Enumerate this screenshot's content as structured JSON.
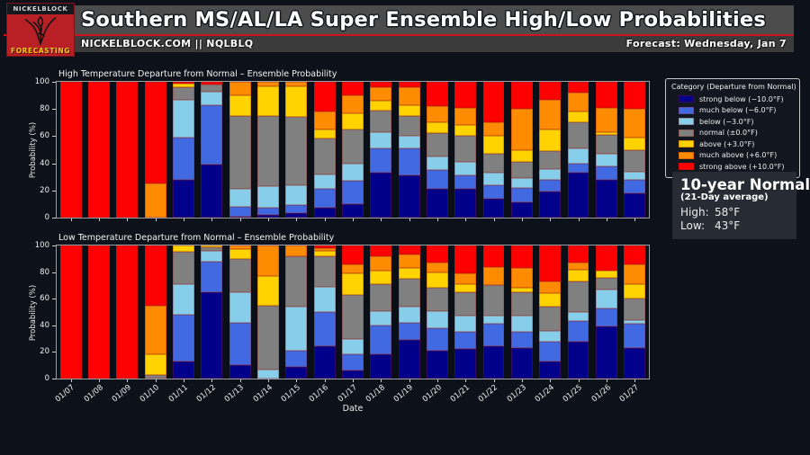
{
  "header": {
    "logo_top": "NICKELBLOCK",
    "logo_bottom": "FORECASTING",
    "title": "Southern MS/AL/LA Super Ensemble High/Low Probabilities",
    "subtitle_left": "NICKELBLOCK.COM || NQLBLQ",
    "subtitle_right": "Forecast: Wednesday, Jan 7"
  },
  "legend": {
    "title": "Category (Departure from Normal)",
    "entries": [
      {
        "label": "strong below (−10.0°F)",
        "color": "#00008b"
      },
      {
        "label": "much below (−6.0°F)",
        "color": "#4169e1"
      },
      {
        "label": "below (−3.0°F)",
        "color": "#87ceeb"
      },
      {
        "label": "normal (±0.0°F)",
        "color": "#808080"
      },
      {
        "label": "above (+3.0°F)",
        "color": "#ffd300"
      },
      {
        "label": "much above (+6.0°F)",
        "color": "#ff8c00"
      },
      {
        "label": "strong above (+10.0°F)",
        "color": "#ff0000"
      }
    ]
  },
  "normals": {
    "title": "10-year Normal",
    "subtitle": "(21-Day average)",
    "high_label": "High:",
    "high_value": "58°F",
    "low_label": "Low:",
    "low_value": "43°F"
  },
  "chart_data": [
    {
      "type": "bar",
      "stacked": true,
      "title": "High Temperature Departure from Normal – Ensemble Probability",
      "xlabel": "",
      "ylabel": "Probability (%)",
      "ylim": [
        0,
        100
      ],
      "yticks": [
        0,
        20,
        40,
        60,
        80,
        100
      ],
      "grid": false,
      "legend_position": "outside-right",
      "categories": [
        "01/07",
        "01/08",
        "01/09",
        "01/10",
        "01/11",
        "01/12",
        "01/13",
        "01/14",
        "01/15",
        "01/16",
        "01/17",
        "01/18",
        "01/19",
        "01/20",
        "01/21",
        "01/22",
        "01/23",
        "01/24",
        "01/25",
        "01/26",
        "01/27"
      ],
      "series": [
        {
          "name": "strong below (−10.0°F)",
          "color": "#00008b",
          "values": [
            0,
            0,
            0,
            0,
            28,
            39,
            1,
            2,
            3,
            7,
            10,
            33,
            31,
            21,
            21,
            14,
            11,
            19,
            33,
            28,
            18
          ]
        },
        {
          "name": "much below (−6.0°F)",
          "color": "#4169e1",
          "values": [
            0,
            0,
            0,
            0,
            31,
            44,
            7,
            5,
            6,
            14,
            17,
            18,
            20,
            14,
            10,
            10,
            11,
            9,
            7,
            10,
            10
          ]
        },
        {
          "name": "below (−3.0°F)",
          "color": "#87ceeb",
          "values": [
            0,
            0,
            0,
            0,
            28,
            10,
            13,
            16,
            15,
            11,
            13,
            12,
            9,
            10,
            10,
            9,
            7,
            8,
            11,
            9,
            6
          ]
        },
        {
          "name": "normal (±0.0°F)",
          "color": "#808080",
          "values": [
            0,
            0,
            0,
            0,
            9,
            5,
            54,
            52,
            50,
            26,
            25,
            16,
            15,
            17,
            19,
            14,
            12,
            13,
            19,
            14,
            16
          ]
        },
        {
          "name": "above (+3.0°F)",
          "color": "#ffd300",
          "values": [
            0,
            0,
            0,
            0,
            3,
            0,
            15,
            22,
            23,
            7,
            12,
            7,
            8,
            8,
            8,
            13,
            9,
            16,
            8,
            2,
            9
          ]
        },
        {
          "name": "much above (+6.0°F)",
          "color": "#ff8c00",
          "values": [
            0,
            0,
            0,
            25,
            0,
            0,
            10,
            3,
            3,
            13,
            13,
            10,
            13,
            12,
            13,
            10,
            30,
            22,
            14,
            18,
            21
          ]
        },
        {
          "name": "strong above (+10.0°F)",
          "color": "#ff0000",
          "values": [
            100,
            100,
            100,
            75,
            1,
            2,
            0,
            0,
            0,
            22,
            10,
            4,
            4,
            18,
            19,
            30,
            20,
            13,
            8,
            19,
            20
          ]
        }
      ]
    },
    {
      "type": "bar",
      "stacked": true,
      "title": "Low Temperature Departure from Normal – Ensemble Probability",
      "xlabel": "Date",
      "ylabel": "Probability (%)",
      "ylim": [
        0,
        100
      ],
      "yticks": [
        0,
        20,
        40,
        60,
        80,
        100
      ],
      "grid": false,
      "legend_position": "outside-right",
      "categories": [
        "01/07",
        "01/08",
        "01/09",
        "01/10",
        "01/11",
        "01/12",
        "01/13",
        "01/14",
        "01/15",
        "01/16",
        "01/17",
        "01/18",
        "01/19",
        "01/20",
        "01/21",
        "01/22",
        "01/23",
        "01/24",
        "01/25",
        "01/26",
        "01/27"
      ],
      "series": [
        {
          "name": "strong below (−10.0°F)",
          "color": "#00008b",
          "values": [
            0,
            0,
            0,
            0,
            13,
            65,
            10,
            0,
            9,
            24,
            6,
            18,
            29,
            21,
            22,
            24,
            23,
            13,
            28,
            39,
            23
          ]
        },
        {
          "name": "much below (−6.0°F)",
          "color": "#4169e1",
          "values": [
            0,
            0,
            0,
            0,
            35,
            23,
            32,
            0,
            12,
            26,
            12,
            22,
            13,
            17,
            13,
            17,
            12,
            15,
            15,
            14,
            18
          ]
        },
        {
          "name": "below (−3.0°F)",
          "color": "#87ceeb",
          "values": [
            0,
            0,
            0,
            0,
            23,
            8,
            23,
            7,
            33,
            19,
            12,
            11,
            12,
            13,
            12,
            6,
            12,
            8,
            7,
            14,
            3
          ]
        },
        {
          "name": "normal (±0.0°F)",
          "color": "#808080",
          "values": [
            0,
            0,
            0,
            3,
            24,
            3,
            25,
            48,
            38,
            23,
            33,
            20,
            21,
            17,
            18,
            23,
            18,
            18,
            23,
            9,
            16
          ]
        },
        {
          "name": "above (+3.0°F)",
          "color": "#ffd300",
          "values": [
            0,
            0,
            0,
            15,
            5,
            1,
            7,
            22,
            0,
            4,
            16,
            10,
            8,
            12,
            6,
            0,
            3,
            10,
            9,
            5,
            11
          ]
        },
        {
          "name": "much above (+6.0°F)",
          "color": "#ff8c00",
          "values": [
            0,
            0,
            0,
            37,
            0,
            0,
            3,
            23,
            8,
            2,
            7,
            11,
            10,
            7,
            8,
            14,
            15,
            9,
            5,
            0,
            15
          ]
        },
        {
          "name": "strong above (+10.0°F)",
          "color": "#ff0000",
          "values": [
            100,
            100,
            100,
            45,
            0,
            0,
            0,
            0,
            0,
            2,
            14,
            8,
            7,
            13,
            21,
            16,
            17,
            27,
            13,
            19,
            14
          ]
        }
      ]
    }
  ]
}
